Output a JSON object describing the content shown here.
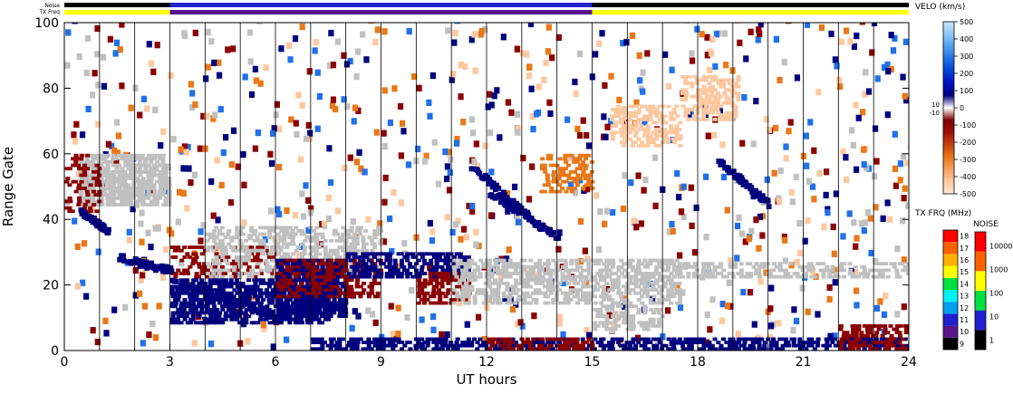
{
  "chart_data": {
    "type": "heatmap",
    "top_strips": [
      {
        "label": "Noise",
        "segments": [
          {
            "from": 0,
            "to": 3,
            "color": "#000000"
          },
          {
            "from": 3,
            "to": 15,
            "color": "#2222cc"
          },
          {
            "from": 15,
            "to": 24,
            "color": "#000000"
          }
        ]
      },
      {
        "label": "TX Freq",
        "segments": [
          {
            "from": 0,
            "to": 3,
            "color": "#ffff00"
          },
          {
            "from": 3,
            "to": 15,
            "color": "#5a148c"
          },
          {
            "from": 15,
            "to": 24,
            "color": "#ffff00"
          }
        ]
      }
    ],
    "x": {
      "label": "UT hours",
      "min": 0,
      "max": 24,
      "ticks": [
        0,
        3,
        6,
        9,
        12,
        15,
        18,
        21,
        24
      ]
    },
    "y": {
      "label": "Range Gate",
      "min": 0,
      "max": 100,
      "ticks": [
        0,
        20,
        40,
        60,
        80,
        100
      ]
    },
    "scan_boundaries": [
      0,
      1,
      2,
      3,
      4,
      5,
      6,
      7,
      8,
      9,
      10,
      11,
      12,
      13,
      14,
      15,
      16,
      17,
      18,
      19,
      20,
      21,
      22,
      23,
      24
    ],
    "regions": [
      {
        "name": "gray-upper-left",
        "x0": 0.4,
        "x1": 3.0,
        "y0": 44,
        "y1": 60,
        "color": "#c0c0c0",
        "density": 0.8
      },
      {
        "name": "red-left",
        "x0": 0.0,
        "x1": 1.0,
        "y0": 42,
        "y1": 60,
        "color": "#8b0000",
        "density": 0.35
      },
      {
        "name": "red-mid",
        "x0": 3.0,
        "x1": 6.0,
        "y0": 22,
        "y1": 32,
        "color": "#8b0000",
        "density": 0.35
      },
      {
        "name": "gray-mid",
        "x0": 4.0,
        "x1": 9.0,
        "y0": 22,
        "y1": 38,
        "color": "#c0c0c0",
        "density": 0.4
      },
      {
        "name": "navy-dip",
        "x0": 3.0,
        "x1": 7.5,
        "y0": 8,
        "y1": 22,
        "color": "#00007f",
        "density": 0.7
      },
      {
        "name": "navy-core",
        "x0": 6.0,
        "x1": 8.0,
        "y0": 10,
        "y1": 28,
        "color": "#00007f",
        "density": 0.85
      },
      {
        "name": "red-core",
        "x0": 6.0,
        "x1": 9.0,
        "y0": 16,
        "y1": 28,
        "color": "#8b0000",
        "density": 0.45
      },
      {
        "name": "navy-band",
        "x0": 8.0,
        "x1": 11.5,
        "y0": 22,
        "y1": 30,
        "color": "#00007f",
        "density": 0.6
      },
      {
        "name": "red-11",
        "x0": 10.0,
        "x1": 11.5,
        "y0": 14,
        "y1": 24,
        "color": "#8b0000",
        "density": 0.55
      },
      {
        "name": "gray-12-15",
        "x0": 11.0,
        "x1": 17.5,
        "y0": 14,
        "y1": 28,
        "color": "#c0c0c0",
        "density": 0.55
      },
      {
        "name": "gray-low-15",
        "x0": 15.0,
        "x1": 17.0,
        "y0": 6,
        "y1": 14,
        "color": "#c0c0c0",
        "density": 0.5
      },
      {
        "name": "gray-band-right",
        "x0": 17.0,
        "x1": 24.0,
        "y0": 22,
        "y1": 27,
        "color": "#c0c0c0",
        "density": 0.5
      },
      {
        "name": "peach-17",
        "x0": 15.5,
        "x1": 17.5,
        "y0": 62,
        "y1": 75,
        "color": "#fcc8a0",
        "density": 0.5
      },
      {
        "name": "peach-18",
        "x0": 17.5,
        "x1": 19.2,
        "y0": 70,
        "y1": 84,
        "color": "#fcc8a0",
        "density": 0.5
      },
      {
        "name": "orange-14",
        "x0": 13.5,
        "x1": 15.0,
        "y0": 48,
        "y1": 60,
        "color": "#e87818",
        "density": 0.45
      },
      {
        "name": "navy-ground",
        "x0": 7.0,
        "x1": 24.0,
        "y0": 0,
        "y1": 4,
        "color": "#00007f",
        "density": 0.6
      },
      {
        "name": "red-ground",
        "x0": 12.0,
        "x1": 15.0,
        "y0": 0,
        "y1": 4,
        "color": "#8b0000",
        "density": 0.5
      },
      {
        "name": "red-ground-right",
        "x0": 22.0,
        "x1": 24.0,
        "y0": 0,
        "y1": 8,
        "color": "#8b0000",
        "density": 0.5
      }
    ],
    "streaks": [
      {
        "name": "streak-1",
        "from": [
          11.5,
          56
        ],
        "to": [
          13.2,
          40
        ],
        "width": 2,
        "color": "#00007f"
      },
      {
        "name": "streak-2",
        "from": [
          12.0,
          48
        ],
        "to": [
          14.0,
          34
        ],
        "width": 2,
        "color": "#00007f"
      },
      {
        "name": "streak-3",
        "from": [
          18.5,
          58
        ],
        "to": [
          20.0,
          44
        ],
        "width": 2,
        "color": "#00007f"
      },
      {
        "name": "streak-4",
        "from": [
          0.4,
          42
        ],
        "to": [
          1.2,
          36
        ],
        "width": 1.5,
        "color": "#00007f"
      },
      {
        "name": "streak-5",
        "from": [
          1.5,
          28
        ],
        "to": [
          3.0,
          24
        ],
        "width": 2,
        "color": "#00007f"
      },
      {
        "name": "streak-6",
        "from": [
          3.0,
          20
        ],
        "to": [
          6.0,
          10
        ],
        "width": 2.5,
        "color": "#00007f"
      }
    ],
    "velocity_colorbar": {
      "title": "VELO (km/s)",
      "min": -500,
      "max": 500,
      "ticks": [
        500,
        400,
        300,
        200,
        100,
        0,
        -100,
        -200,
        -300,
        -400,
        -500
      ],
      "threshold_labels": [
        "10",
        "-10"
      ],
      "colors": [
        "#fde8d8",
        "#fcc8a0",
        "#f8a060",
        "#e87818",
        "#c84010",
        "#a01008",
        "#800000",
        "#ffffff",
        "#00007f",
        "#0010c0",
        "#0040d8",
        "#2070e8",
        "#50a0f0",
        "#90c8f8",
        "#c8e4fc"
      ]
    },
    "txfreq_colorbar": {
      "title": "TX FRQ (MHz)",
      "ticks": [
        18,
        17,
        16,
        15,
        14,
        13,
        12,
        11,
        10,
        9
      ],
      "colors": [
        "#000000",
        "#5a148c",
        "#2020d0",
        "#00a0f0",
        "#00f0f0",
        "#00e040",
        "#ffff00",
        "#ffb000",
        "#ff6000",
        "#ff0000"
      ]
    },
    "noise_colorbar": {
      "title": "NOISE",
      "ticks": [
        "10000",
        "1000",
        "100",
        "10",
        "1"
      ],
      "colors": [
        "#000000",
        "#2020d0",
        "#00e040",
        "#ffff00",
        "#ff6000",
        "#ff0000"
      ]
    }
  }
}
